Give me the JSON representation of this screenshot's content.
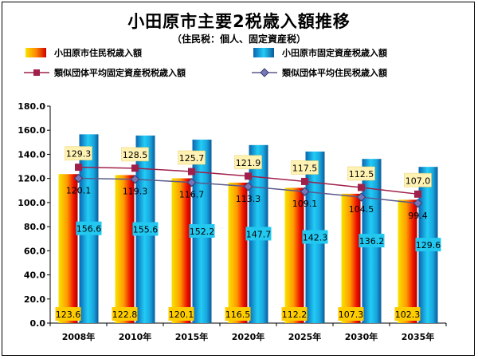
{
  "title": "小田原市主要2税歳入額推移",
  "subtitle": "（住民税：個人、固定資産税）",
  "chart_data": {
    "type": "bar",
    "categories": [
      "2008年",
      "2010年",
      "2015年",
      "2020年",
      "2025年",
      "2030年",
      "2035年"
    ],
    "series": [
      {
        "name": "小田原市住民税歳入額",
        "kind": "bar",
        "values": [
          123.6,
          122.8,
          120.1,
          116.5,
          112.2,
          107.3,
          102.3
        ]
      },
      {
        "name": "小田原市固定資産税歳入額",
        "kind": "bar",
        "values": [
          156.6,
          155.6,
          152.2,
          147.7,
          142.3,
          136.2,
          129.6
        ]
      },
      {
        "name": "類似団体平均固定資産税税歳入額",
        "kind": "line",
        "values": [
          129.3,
          128.5,
          125.7,
          121.9,
          117.5,
          112.5,
          107.0
        ],
        "color": "#a0204a"
      },
      {
        "name": "類似団体平均住民税歳入額",
        "kind": "line",
        "values": [
          120.1,
          119.3,
          116.7,
          113.3,
          109.1,
          104.5,
          99.4
        ],
        "color": "#5a5a8c"
      }
    ],
    "bar_labels": [
      [
        "123.6",
        "122.8",
        "120.1",
        "116.5",
        "112.2",
        "107.3",
        "102.3"
      ],
      [
        "156.6",
        "155.6",
        "152.2",
        "147.7",
        "142.3",
        "136.2",
        "129.6"
      ]
    ],
    "line_labels": [
      [
        "129.3",
        "128.5",
        "125.7",
        "121.9",
        "117.5",
        "112.5",
        "107.0"
      ],
      [
        "120.1",
        "119.3",
        "116.7",
        "113.3",
        "109.1",
        "104.5",
        "99.4"
      ]
    ],
    "y_ticks": [
      "0.0",
      "20.0",
      "40.0",
      "60.0",
      "80.0",
      "100.0",
      "120.0",
      "140.0",
      "160.0",
      "180.0"
    ],
    "ylim": [
      0,
      180
    ],
    "grid": false,
    "legend_placement": "top"
  }
}
